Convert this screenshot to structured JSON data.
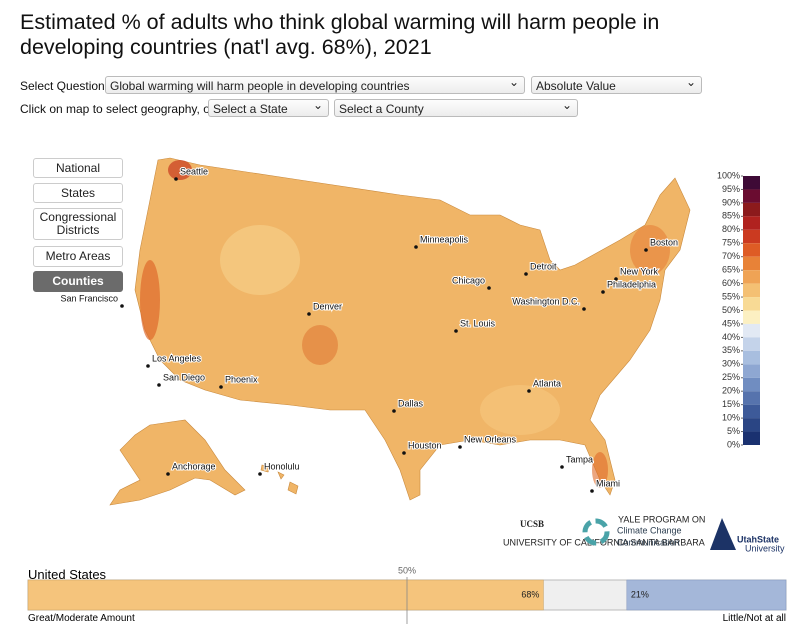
{
  "title": "Estimated % of adults who think global warming will harm people in developing countries (nat'l avg. 68%), 2021",
  "controls": {
    "question_label": "Select Question:",
    "question": "Global warming will harm people in developing countries",
    "measure": "Absolute Value",
    "geography_label": "Click on map to select geography, or:",
    "state": "Select a State",
    "county": "Select a County"
  },
  "geography_buttons": [
    "National",
    "States",
    "Congressional Districts",
    "Metro Areas",
    "Counties"
  ],
  "legend": {
    "ticks": [
      {
        "value": 100,
        "label": "100%"
      },
      {
        "value": 95,
        "label": "95%"
      },
      {
        "value": 90,
        "label": "90%"
      },
      {
        "value": 85,
        "label": "85%"
      },
      {
        "value": 80,
        "label": "80%"
      },
      {
        "value": 75,
        "label": "75%"
      },
      {
        "value": 70,
        "label": "70%"
      },
      {
        "value": 65,
        "label": "65%"
      },
      {
        "value": 60,
        "label": "60%"
      },
      {
        "value": 55,
        "label": "55%"
      },
      {
        "value": 50,
        "label": "50%"
      },
      {
        "value": 45,
        "label": "45%"
      },
      {
        "value": 40,
        "label": "40%"
      },
      {
        "value": 35,
        "label": "35%"
      },
      {
        "value": 30,
        "label": "30%"
      },
      {
        "value": 25,
        "label": "25%"
      },
      {
        "value": 20,
        "label": "20%"
      },
      {
        "value": 15,
        "label": "15%"
      },
      {
        "value": 10,
        "label": "10%"
      },
      {
        "value": 5,
        "label": "5%"
      },
      {
        "value": 0,
        "label": "0%"
      }
    ],
    "colors": [
      "#3e0a36",
      "#6a0c30",
      "#8c1a1c",
      "#b0221f",
      "#cb3a20",
      "#de5c25",
      "#e88237",
      "#efa355",
      "#f4c073",
      "#f8da95",
      "#fcf0c2",
      "#e2e9f4",
      "#c4d3ea",
      "#a8bedf",
      "#8ea7d2",
      "#708dc1",
      "#5673ad",
      "#3d5a99",
      "#2a4584",
      "#1a3170"
    ]
  },
  "cities": [
    "Seattle",
    "San Francisco",
    "Los Angeles",
    "San Diego",
    "Phoenix",
    "Denver",
    "Minneapolis",
    "Chicago",
    "Detroit",
    "St. Louis",
    "Dallas",
    "Houston",
    "New Orleans",
    "Atlanta",
    "Tampa",
    "Miami",
    "Boston",
    "New York",
    "Philadelphia",
    "Washington D.C.",
    "Anchorage",
    "Honolulu"
  ],
  "logos": {
    "ucsb": "UCSB",
    "ucsb_sub": "UNIVERSITY OF CALIFORNIA SANTA BARBARA",
    "yale_top": "YALE PROGRAM ON",
    "yale_1": "Climate Change",
    "yale_2": "Communication",
    "usu_1": "UtahState",
    "usu_2": "University"
  },
  "summary": {
    "geography": "United States",
    "midpoint": {
      "value": 50,
      "label": "50%"
    },
    "segments": [
      {
        "value": 68,
        "label": "68%",
        "color": "#f5c47c"
      },
      {
        "value": 21,
        "label": "21%",
        "color": "#a4b7d9"
      }
    ],
    "left_label": "Great/Moderate Amount",
    "right_label": "Little/Not at all"
  }
}
